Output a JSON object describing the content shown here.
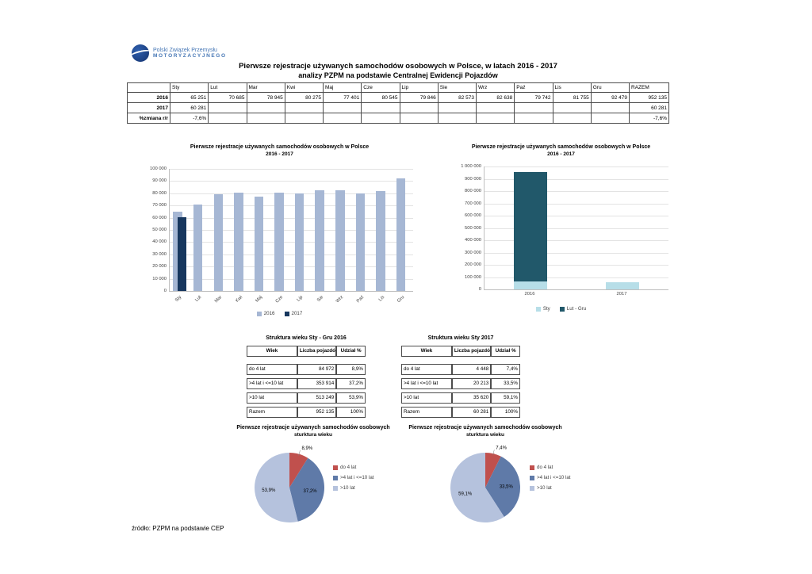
{
  "logo": {
    "line1": "Polski Związek Przemysłu",
    "line2": "MOTORYZACYJNEGO"
  },
  "header": {
    "title_line1": "Pierwsze rejestracje używanych samochodów osobowych w Polsce, w latach 2016 - 2017",
    "title_line2": "analizy PZPM na podstawie Centralnej Ewidencji Pojazdów"
  },
  "monthly_table": {
    "columns": [
      "",
      "Sty",
      "Lut",
      "Mar",
      "Kwi",
      "Maj",
      "Cze",
      "Lip",
      "Sie",
      "Wrz",
      "Paź",
      "Lis",
      "Gru",
      "RAZEM"
    ],
    "rows": [
      {
        "label": "2016",
        "values": [
          "65 251",
          "70 685",
          "78 945",
          "80 275",
          "77 401",
          "80 545",
          "79 846",
          "82 573",
          "82 638",
          "79 742",
          "81 755",
          "92 479",
          "952 135"
        ]
      },
      {
        "label": "2017",
        "values": [
          "60 281",
          "",
          "",
          "",
          "",
          "",
          "",
          "",
          "",
          "",
          "",
          "",
          "60 281"
        ]
      },
      {
        "label": "%zmiana r/r",
        "values": [
          "-7,6%",
          "",
          "",
          "",
          "",
          "",
          "",
          "",
          "",
          "",
          "",
          "",
          "-7,6%"
        ]
      }
    ]
  },
  "chart_data": [
    {
      "type": "bar",
      "title": "Pierwsze rejestracje używanych samochodów osobowych w Polsce",
      "subtitle": "2016 - 2017",
      "categories": [
        "Sty",
        "Lut",
        "Mar",
        "Kwi",
        "Maj",
        "Cze",
        "Lip",
        "Sie",
        "Wrz",
        "Paź",
        "Lis",
        "Gru"
      ],
      "series": [
        {
          "name": "2016",
          "color": "#a6b7d4",
          "values": [
            65251,
            70685,
            78945,
            80275,
            77401,
            80545,
            79846,
            82573,
            82638,
            79742,
            81755,
            92479
          ]
        },
        {
          "name": "2017",
          "color": "#17375e",
          "values": [
            60281,
            null,
            null,
            null,
            null,
            null,
            null,
            null,
            null,
            null,
            null,
            null
          ]
        }
      ],
      "ylim": [
        0,
        100000
      ],
      "ytick_step": 10000,
      "rotate_xlabels": true,
      "stacked": false,
      "grid": true,
      "legend_position": "bottom"
    },
    {
      "type": "bar",
      "title": "Pierwsze rejestracje używanych samochodów osobowych w Polsce",
      "subtitle": "2016 - 2017",
      "categories": [
        "2016",
        "2017"
      ],
      "series": [
        {
          "name": "Sty",
          "color": "#b7dee8",
          "values": [
            65251,
            60281
          ]
        },
        {
          "name": "Lut - Gru",
          "color": "#21586a",
          "values": [
            886884,
            0
          ]
        }
      ],
      "ylim": [
        0,
        1000000
      ],
      "ytick_step": 100000,
      "rotate_xlabels": false,
      "stacked": true,
      "grid": true,
      "legend_position": "bottom"
    },
    {
      "type": "pie",
      "title": "Pierwsze rejestracje używanych samochodów osobowych",
      "subtitle": "sturktura wieku",
      "labels": [
        "do 4 lat",
        ">4 lat i <=10 lat",
        ">10 lat"
      ],
      "values": [
        8.9,
        37.2,
        53.9
      ],
      "value_labels": [
        "8,9%",
        "37,2%",
        "53,9%"
      ],
      "colors": [
        "#c0504d",
        "#5f7aa8",
        "#b5c2dd"
      ],
      "legend_position": "right"
    },
    {
      "type": "pie",
      "title": "Pierwsze rejestracje używanych samochodów osobowych",
      "subtitle": "sturktura wieku",
      "labels": [
        "do 4 lat",
        ">4 lat i <=10 lat",
        ">10 lat"
      ],
      "values": [
        7.4,
        33.5,
        59.1
      ],
      "value_labels": [
        "7,4%",
        "33,5%",
        "59,1%"
      ],
      "colors": [
        "#c0504d",
        "#5f7aa8",
        "#b5c2dd"
      ],
      "legend_position": "right"
    }
  ],
  "age_tables": [
    {
      "title": "Struktura wieku Sty - Gru 2016",
      "columns": [
        "Wiek",
        "Liczba pojazdów",
        "Udział %"
      ],
      "rows": [
        [
          "do 4 lat",
          "84 972",
          "8,9%"
        ],
        [
          ">4 lat i <=10 lat",
          "353 914",
          "37,2%"
        ],
        [
          ">10 lat",
          "513 249",
          "53,9%"
        ],
        [
          "Razem",
          "952 135",
          "100%"
        ]
      ]
    },
    {
      "title": "Struktura wieku Sty 2017",
      "columns": [
        "Wiek",
        "Liczba pojazdów",
        "Udział %"
      ],
      "rows": [
        [
          "do 4 lat",
          "4 448",
          "7,4%"
        ],
        [
          ">4 lat i <=10 lat",
          "20 213",
          "33,5%"
        ],
        [
          ">10 lat",
          "35 620",
          "59,1%"
        ],
        [
          "Razem",
          "60 281",
          "100%"
        ]
      ]
    }
  ],
  "footer": {
    "source": "źródło: PZPM na podstawie CEP"
  }
}
